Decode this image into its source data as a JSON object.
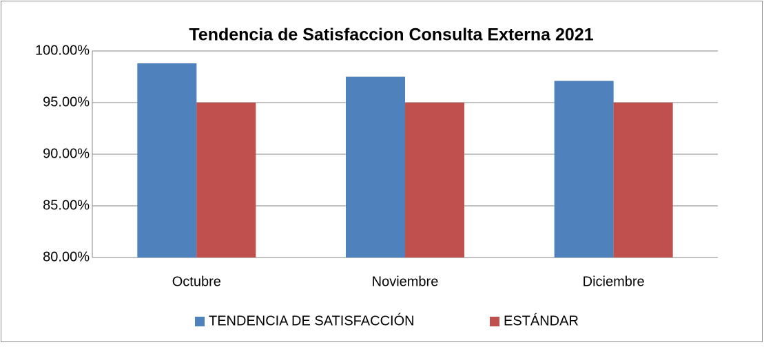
{
  "chart_data": {
    "type": "bar",
    "title": "Tendencia de Satisfaccion Consulta Externa  2021",
    "categories": [
      "Octubre",
      "Noviembre",
      "Diciembre"
    ],
    "series": [
      {
        "name": "TENDENCIA DE SATISFACCIÓN",
        "color": "#4f81bd",
        "values": [
          98.8,
          97.5,
          97.1
        ]
      },
      {
        "name": "ESTÁNDAR",
        "color": "#c0504d",
        "values": [
          95,
          95,
          95
        ]
      }
    ],
    "ylim": [
      80,
      100
    ],
    "yticks": [
      {
        "value": 80,
        "label": "80.00%"
      },
      {
        "value": 85,
        "label": "85.00%"
      },
      {
        "value": 90,
        "label": "90.00%"
      },
      {
        "value": 95,
        "label": "95.00%"
      },
      {
        "value": 100,
        "label": "100.00%"
      }
    ],
    "grid": true,
    "legend": "bottom"
  }
}
